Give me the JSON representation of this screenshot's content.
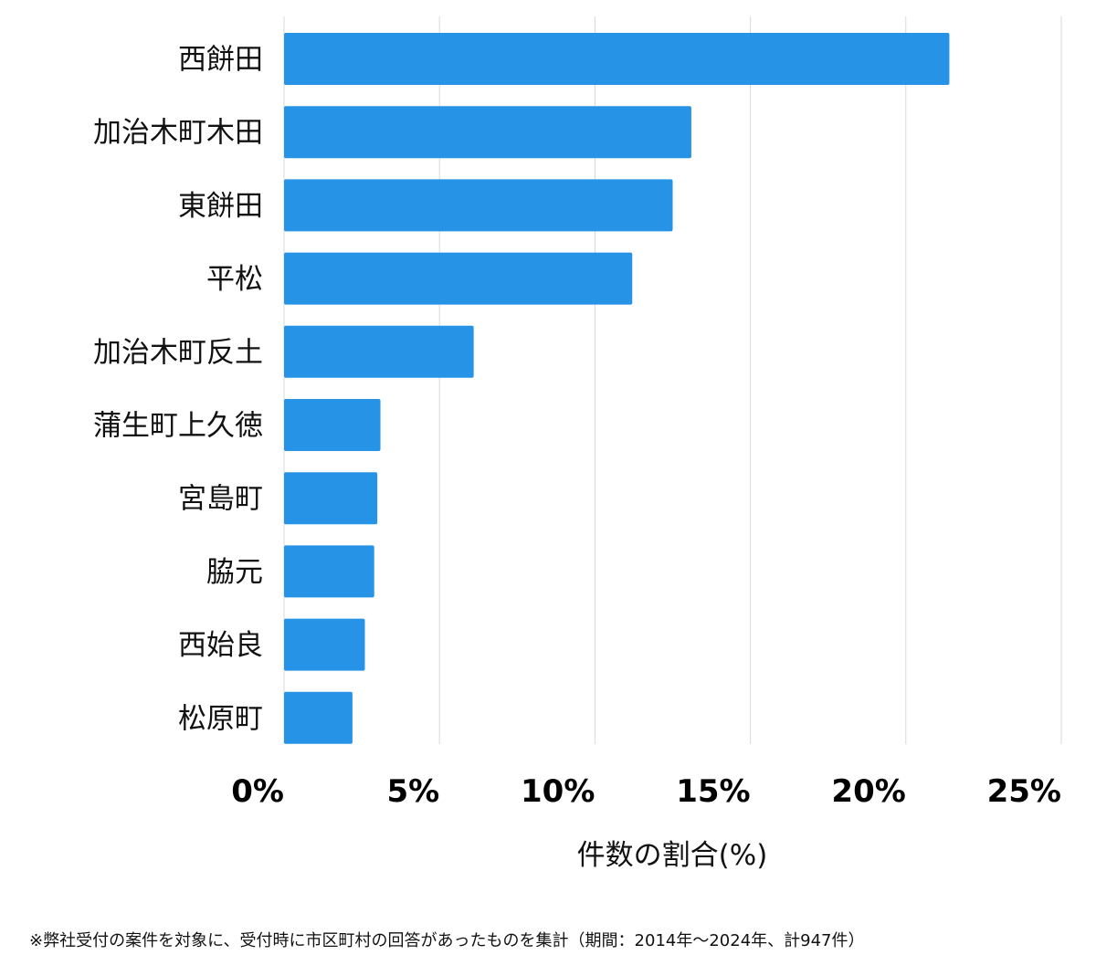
{
  "chart_data": {
    "type": "bar",
    "orientation": "horizontal",
    "categories": [
      "西餅田",
      "加治木町木田",
      "東餅田",
      "平松",
      "加治木町反土",
      "蒲生町上久徳",
      "宮島町",
      "脇元",
      "西始良",
      "松原町"
    ],
    "values": [
      21.4,
      13.1,
      12.5,
      11.2,
      6.1,
      3.1,
      3.0,
      2.9,
      2.6,
      2.2
    ],
    "x_ticks": [
      0,
      5,
      10,
      15,
      20,
      25
    ],
    "x_tick_labels": [
      "0%",
      "5%",
      "10%",
      "15%",
      "20%",
      "25%"
    ],
    "xlim": [
      0,
      25
    ],
    "xlabel": "件数の割合(%)",
    "ylabel": "",
    "grid": true,
    "bar_color": "#2793e6",
    "grid_color": "#d9d9d9"
  },
  "footnote": "※弊社受付の案件を対象に、受付時に市区町村の回答があったものを集計（期間：2014年～2024年、計947件）"
}
